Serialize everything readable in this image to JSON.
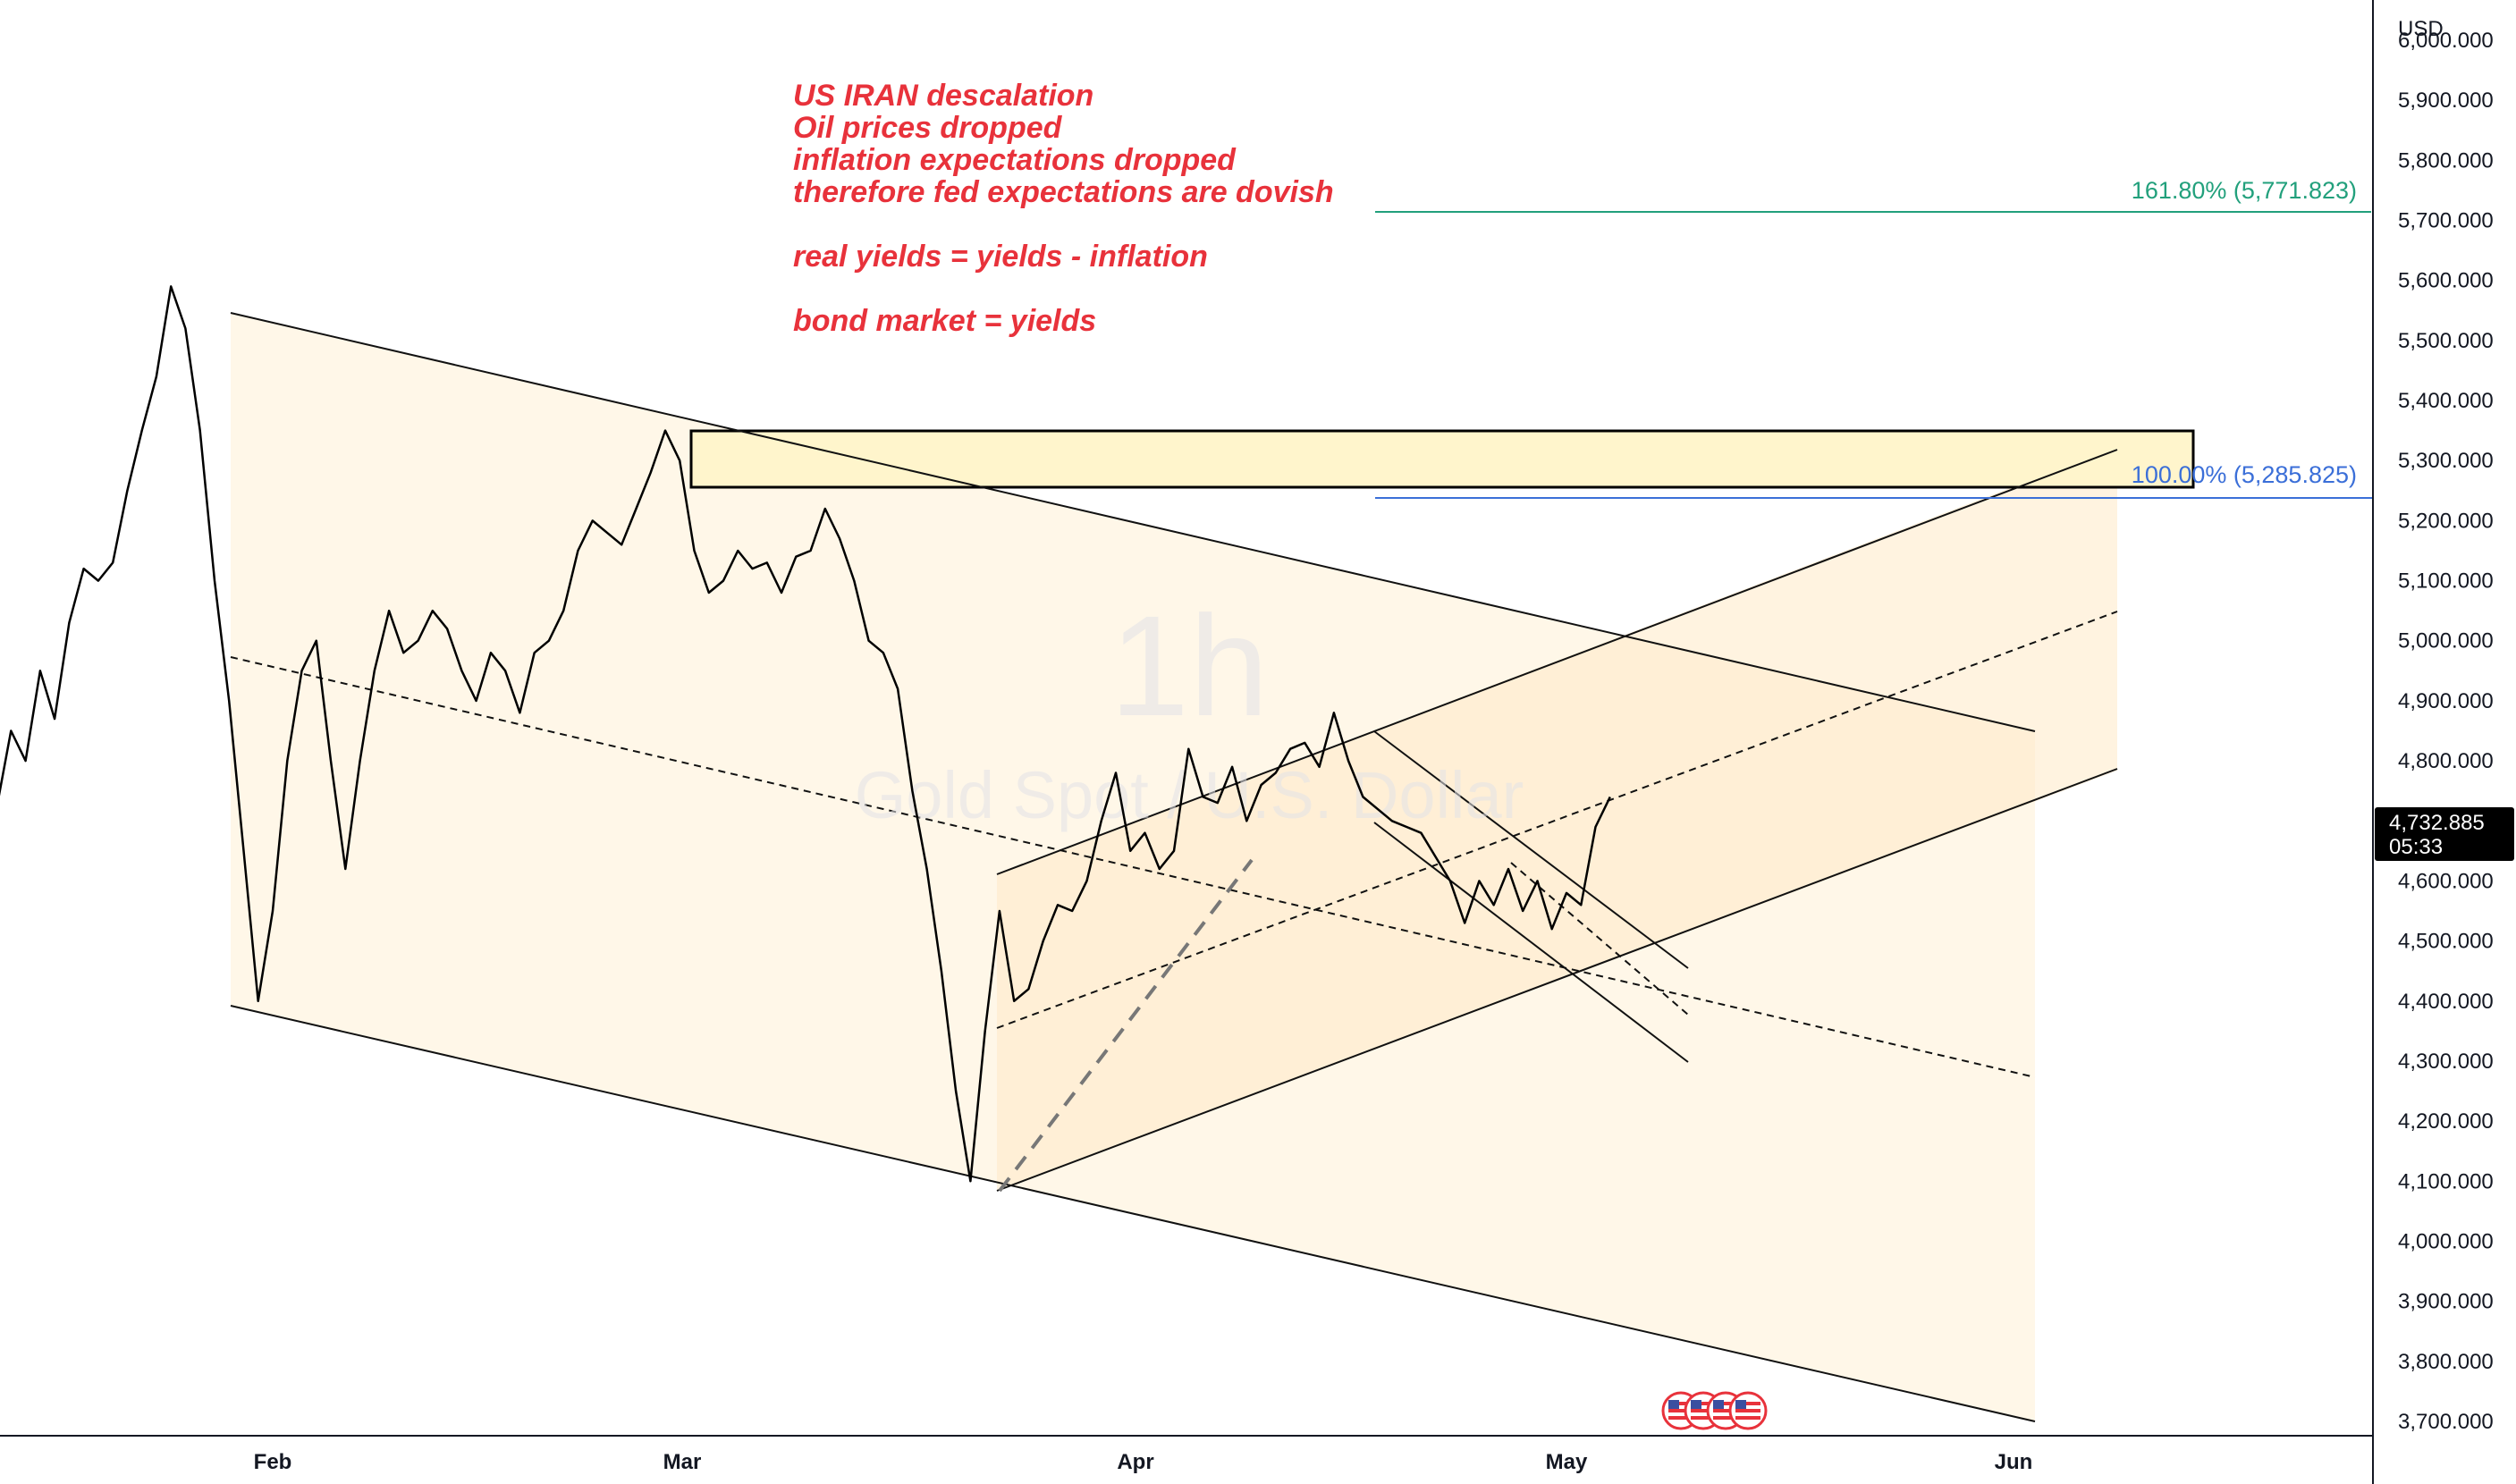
{
  "chart_data": {
    "type": "line",
    "symbol_watermark": {
      "interval": "1h",
      "name": "Gold Spot / U.S. Dollar"
    },
    "currency": "USD",
    "y_axis": {
      "ylim": [
        3700,
        6100
      ],
      "ticks": [
        "3,700.000",
        "3,800.000",
        "3,900.000",
        "4,000.000",
        "4,100.000",
        "4,200.000",
        "4,300.000",
        "4,400.000",
        "4,500.000",
        "4,600.000",
        "4,700.000",
        "4,800.000",
        "4,900.000",
        "5,000.000",
        "5,100.000",
        "5,200.000",
        "5,300.000",
        "5,400.000",
        "5,500.000",
        "5,600.000",
        "5,700.000",
        "5,800.000",
        "5,900.000",
        "6,000.000"
      ]
    },
    "x_axis": {
      "ticks": [
        "Feb",
        "Mar",
        "Apr",
        "May",
        "Jun"
      ]
    },
    "last_price": {
      "value": 4732.885,
      "label": "4,732.885",
      "countdown": "05:33"
    },
    "fib_levels": [
      {
        "label": "161.80% (5,771.823)",
        "price": 5771.823,
        "color": "#22a07c"
      },
      {
        "label": "100.00% (5,285.825)",
        "price": 5285.825,
        "color": "#3b6fd8"
      }
    ],
    "resistance_zone": {
      "from_price": 5300,
      "to_price": 5400
    },
    "annotations": [
      "US IRAN descalation",
      "Oil prices dropped",
      "inflation expectations dropped",
      "therefore fed expectations are dovish",
      "real yields = yields - inflation",
      "bond market = yields"
    ],
    "series": [
      {
        "points": [
          [
            "Jan 07",
            4620
          ],
          [
            "Jan 08",
            4570
          ],
          [
            "Jan 09",
            4620
          ],
          [
            "Jan 10",
            4590
          ],
          [
            "Jan 11",
            4610
          ],
          [
            "Jan 12",
            4650
          ],
          [
            "Jan 13",
            4720
          ],
          [
            "Jan 14",
            4850
          ],
          [
            "Jan 15",
            4800
          ],
          [
            "Jan 16",
            4950
          ],
          [
            "Jan 17",
            4870
          ],
          [
            "Jan 18",
            5030
          ],
          [
            "Jan 19",
            5120
          ],
          [
            "Jan 20",
            5100
          ],
          [
            "Jan 21",
            5130
          ],
          [
            "Jan 22",
            5250
          ],
          [
            "Jan 23",
            5350
          ],
          [
            "Jan 24",
            5440
          ],
          [
            "Jan 25",
            5590
          ],
          [
            "Jan 26",
            5520
          ],
          [
            "Jan 27",
            5350
          ],
          [
            "Jan 28",
            5100
          ],
          [
            "Jan 29",
            4900
          ],
          [
            "Jan 30",
            4650
          ],
          [
            "Jan 31",
            4400
          ],
          [
            "Feb 01",
            4550
          ],
          [
            "Feb 02",
            4800
          ],
          [
            "Feb 03",
            4950
          ],
          [
            "Feb 04",
            5000
          ],
          [
            "Feb 05",
            4800
          ],
          [
            "Feb 06",
            4620
          ],
          [
            "Feb 07",
            4800
          ],
          [
            "Feb 08",
            4950
          ],
          [
            "Feb 09",
            5050
          ],
          [
            "Feb 10",
            4980
          ],
          [
            "Feb 11",
            5000
          ],
          [
            "Feb 12",
            5050
          ],
          [
            "Feb 13",
            5020
          ],
          [
            "Feb 14",
            4950
          ],
          [
            "Feb 15",
            4900
          ],
          [
            "Feb 16",
            4980
          ],
          [
            "Feb 17",
            4950
          ],
          [
            "Feb 18",
            4880
          ],
          [
            "Feb 19",
            4980
          ],
          [
            "Feb 20",
            5000
          ],
          [
            "Feb 21",
            5050
          ],
          [
            "Feb 22",
            5150
          ],
          [
            "Feb 23",
            5200
          ],
          [
            "Feb 24",
            5180
          ],
          [
            "Feb 25",
            5160
          ],
          [
            "Feb 26",
            5220
          ],
          [
            "Feb 27",
            5280
          ],
          [
            "Feb 28",
            5350
          ],
          [
            "Mar 01",
            5300
          ],
          [
            "Mar 02",
            5150
          ],
          [
            "Mar 03",
            5080
          ],
          [
            "Mar 04",
            5100
          ],
          [
            "Mar 05",
            5150
          ],
          [
            "Mar 06",
            5120
          ],
          [
            "Mar 07",
            5130
          ],
          [
            "Mar 08",
            5080
          ],
          [
            "Mar 09",
            5140
          ],
          [
            "Mar 10",
            5150
          ],
          [
            "Mar 11",
            5220
          ],
          [
            "Mar 12",
            5170
          ],
          [
            "Mar 13",
            5100
          ],
          [
            "Mar 14",
            5000
          ],
          [
            "Mar 15",
            4980
          ],
          [
            "Mar 16",
            4920
          ],
          [
            "Mar 17",
            4750
          ],
          [
            "Mar 18",
            4620
          ],
          [
            "Mar 19",
            4450
          ],
          [
            "Mar 20",
            4250
          ],
          [
            "Mar 21",
            4100
          ],
          [
            "Mar 22",
            4350
          ],
          [
            "Mar 23",
            4550
          ],
          [
            "Mar 24",
            4400
          ],
          [
            "Mar 25",
            4420
          ],
          [
            "Mar 26",
            4500
          ],
          [
            "Mar 27",
            4560
          ],
          [
            "Mar 28",
            4550
          ],
          [
            "Mar 29",
            4600
          ],
          [
            "Mar 30",
            4700
          ],
          [
            "Mar 31",
            4780
          ],
          [
            "Apr 01",
            4650
          ],
          [
            "Apr 02",
            4680
          ],
          [
            "Apr 03",
            4620
          ],
          [
            "Apr 04",
            4650
          ],
          [
            "Apr 05",
            4820
          ],
          [
            "Apr 06",
            4740
          ],
          [
            "Apr 07",
            4730
          ],
          [
            "Apr 08",
            4790
          ],
          [
            "Apr 09",
            4700
          ],
          [
            "Apr 10",
            4760
          ],
          [
            "Apr 11",
            4780
          ],
          [
            "Apr 12",
            4820
          ],
          [
            "Apr 13",
            4830
          ],
          [
            "Apr 14",
            4790
          ],
          [
            "Apr 15",
            4880
          ],
          [
            "Apr 16",
            4800
          ],
          [
            "Apr 17",
            4740
          ],
          [
            "Apr 18",
            4720
          ],
          [
            "Apr 19",
            4700
          ],
          [
            "Apr 20",
            4690
          ],
          [
            "Apr 21",
            4680
          ],
          [
            "Apr 22",
            4640
          ],
          [
            "Apr 23",
            4600
          ],
          [
            "Apr 24",
            4530
          ],
          [
            "Apr 25",
            4600
          ],
          [
            "Apr 26",
            4560
          ],
          [
            "Apr 27",
            4620
          ],
          [
            "Apr 28",
            4550
          ],
          [
            "Apr 29",
            4600
          ],
          [
            "Apr 30",
            4520
          ],
          [
            "May 01",
            4580
          ],
          [
            "May 02",
            4560
          ],
          [
            "May 03",
            4690
          ],
          [
            "May 04",
            4740
          ]
        ]
      }
    ]
  }
}
